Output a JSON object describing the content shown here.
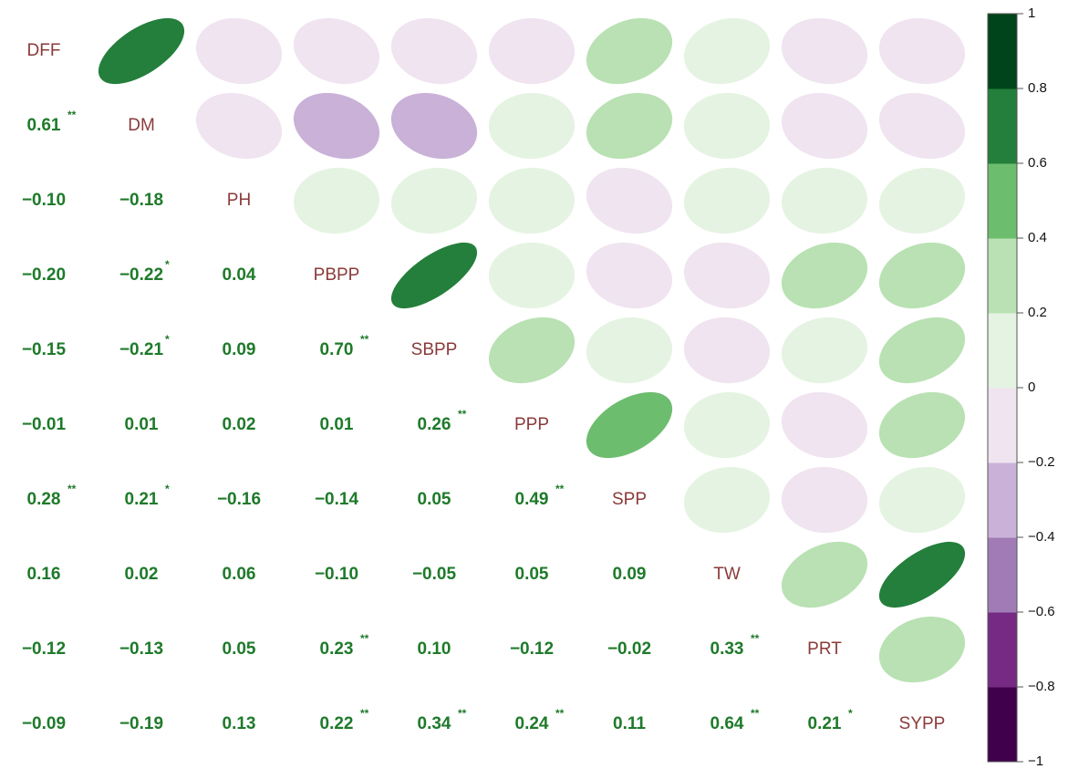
{
  "chart_data": {
    "type": "corrplot",
    "variables": [
      "DFF",
      "DM",
      "PH",
      "PBPP",
      "SBPP",
      "PPP",
      "SPP",
      "TW",
      "PRT",
      "SYPP"
    ],
    "values": [
      [],
      [
        0.61
      ],
      [
        -0.1,
        -0.18
      ],
      [
        -0.2,
        -0.22,
        0.04
      ],
      [
        -0.15,
        -0.21,
        0.09,
        0.7
      ],
      [
        -0.01,
        0.01,
        0.02,
        0.01,
        0.26
      ],
      [
        0.28,
        0.21,
        -0.16,
        -0.14,
        0.05,
        0.49
      ],
      [
        0.16,
        0.02,
        0.06,
        -0.1,
        -0.05,
        0.05,
        0.09
      ],
      [
        -0.12,
        -0.13,
        0.05,
        0.23,
        0.1,
        -0.12,
        -0.02,
        0.33
      ],
      [
        -0.09,
        -0.19,
        0.13,
        0.22,
        0.34,
        0.24,
        0.11,
        0.64,
        0.21
      ]
    ],
    "value_labels": [
      [],
      [
        "0.61"
      ],
      [
        "−0.10",
        "−0.18"
      ],
      [
        "−0.20",
        "−0.22",
        "0.04"
      ],
      [
        "−0.15",
        "−0.21",
        "0.09",
        "0.70"
      ],
      [
        "−0.01",
        "0.01",
        "0.02",
        "0.01",
        "0.26"
      ],
      [
        "0.28",
        "0.21",
        "−0.16",
        "−0.14",
        "0.05",
        "0.49"
      ],
      [
        "0.16",
        "0.02",
        "0.06",
        "−0.10",
        "−0.05",
        "0.05",
        "0.09"
      ],
      [
        "−0.12",
        "−0.13",
        "0.05",
        "0.23",
        "0.10",
        "−0.12",
        "−0.02",
        "0.33"
      ],
      [
        "−0.09",
        "−0.19",
        "0.13",
        "0.22",
        "0.34",
        "0.24",
        "0.11",
        "0.64",
        "0.21"
      ]
    ],
    "signif": [
      [],
      [
        "**"
      ],
      [
        null,
        null
      ],
      [
        null,
        "*",
        null
      ],
      [
        null,
        "*",
        null,
        "**"
      ],
      [
        null,
        null,
        null,
        null,
        "**"
      ],
      [
        "**",
        "*",
        null,
        null,
        null,
        "**"
      ],
      [
        null,
        null,
        null,
        null,
        null,
        null,
        null
      ],
      [
        null,
        null,
        null,
        "**",
        null,
        null,
        null,
        "**"
      ],
      [
        null,
        null,
        null,
        "**",
        "**",
        "**",
        null,
        "**",
        "*"
      ]
    ],
    "colorbar": {
      "lim": [
        -1,
        1
      ],
      "colors": [
        "#40004b",
        "#762a83",
        "#a17bb5",
        "#c9b1d8",
        "#efe4f0",
        "#e5f4e2",
        "#b9e1b3",
        "#6cbd6e",
        "#237f3b",
        "#00441b"
      ],
      "ticks": [
        {
          "value": -1,
          "label": "−1"
        },
        {
          "value": -0.8,
          "label": "−0.8"
        },
        {
          "value": -0.6,
          "label": "−0.6"
        },
        {
          "value": -0.4,
          "label": "−0.4"
        },
        {
          "value": -0.2,
          "label": "−0.2"
        },
        0,
        0.2,
        0.4,
        0.6,
        0.8,
        1
      ]
    }
  }
}
